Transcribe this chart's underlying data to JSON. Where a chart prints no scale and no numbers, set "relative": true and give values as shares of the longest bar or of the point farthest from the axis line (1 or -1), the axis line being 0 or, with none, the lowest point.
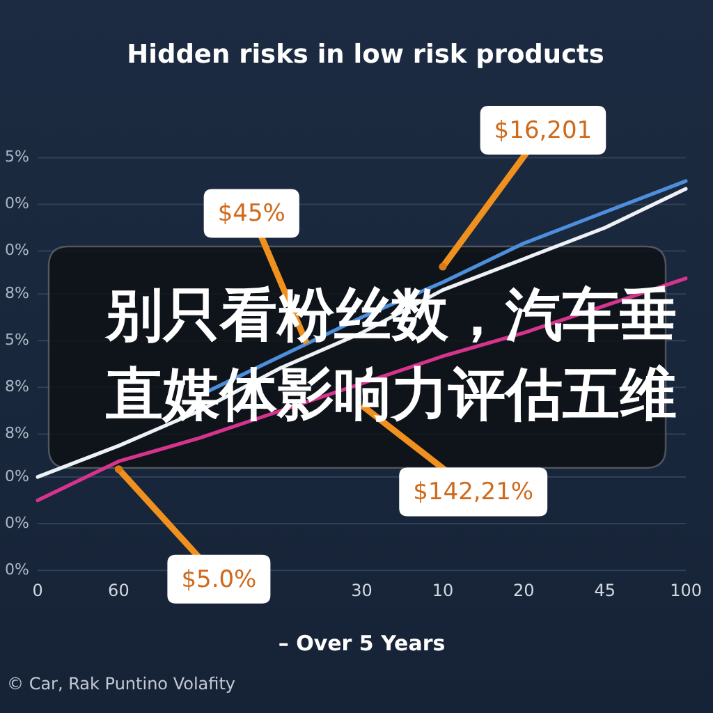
{
  "chart_data": {
    "type": "line",
    "relative": true,
    "title": "Hidden risks in low risk products",
    "xlabel": "– Over 5 Years",
    "categories": [
      "0",
      "60",
      null,
      null,
      "30",
      "10",
      "20",
      "45",
      "100"
    ],
    "series": [
      {
        "color": "#4d8fdc",
        "values": [
          null,
          null,
          0.45,
          0.55,
          0.65,
          0.74,
          0.84,
          0.92,
          1.0
        ]
      },
      {
        "color": "#eef2f6",
        "values": [
          0.24,
          0.32,
          0.41,
          0.52,
          0.61,
          0.72,
          0.8,
          0.88,
          0.98
        ]
      },
      {
        "color": "#d6348c",
        "values": [
          0.18,
          0.28,
          0.34,
          0.41,
          0.48,
          0.55,
          0.61,
          0.68,
          0.75
        ]
      }
    ],
    "ref_lines": [
      {
        "axis": "y",
        "value": 1.06
      },
      {
        "axis": "y",
        "value": 0.94
      },
      {
        "axis": "y",
        "value": 0.82
      },
      {
        "axis": "y",
        "value": 0.71
      },
      {
        "axis": "y",
        "value": 0.59
      },
      {
        "axis": "y",
        "value": 0.47
      },
      {
        "axis": "y",
        "value": 0.35
      },
      {
        "axis": "y",
        "value": 0.24
      },
      {
        "axis": "y",
        "value": 0.12
      },
      {
        "axis": "y",
        "value": 0
      }
    ],
    "legend": false,
    "marker": "none",
    "annotations": [
      {
        "text": "$16,201",
        "x": "10",
        "y": 0.78
      },
      "$45%",
      {
        "text": "$5.0%",
        "x": "60",
        "y": 0.26
      },
      "$142,21%",
      "别只看粉丝数，汽车垂直媒体影响力评估五维",
      "© Car, Rak Puntino Volafity",
      "5%",
      "0%",
      "0%",
      "8%",
      "5%",
      "8%",
      "8%",
      "0%",
      "0%",
      "0%"
    ]
  }
}
